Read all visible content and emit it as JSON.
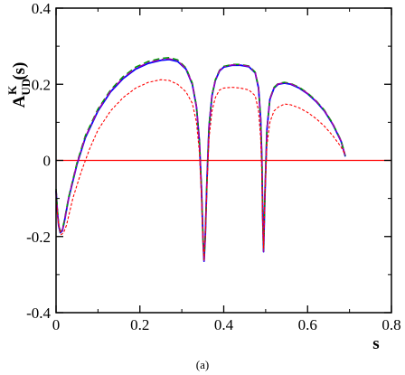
{
  "chart_data": {
    "type": "line",
    "xlabel": "s",
    "ylabel": {
      "main": "A",
      "superscript": "K",
      "subscript": "UD",
      "suffix": "(s)"
    },
    "caption": "(a)",
    "xlim": [
      0,
      0.8
    ],
    "ylim": [
      -0.4,
      0.4
    ],
    "x_ticks": [
      0,
      0.2,
      0.4,
      0.6,
      0.8
    ],
    "x_tick_labels": [
      "0",
      "0.2",
      "0.4",
      "0.6",
      "0.8"
    ],
    "y_ticks": [
      -0.4,
      -0.2,
      0,
      0.2,
      0.4
    ],
    "y_tick_labels": [
      "-0.4",
      "-0.2",
      "0",
      "0.2",
      "0.4"
    ],
    "grid": false,
    "legend": "none",
    "reference_line": {
      "y": 0,
      "color": "#ff0000"
    },
    "series": [
      {
        "color": "#0000ff",
        "style": "solid",
        "x": [
          0.0,
          0.003,
          0.006,
          0.01,
          0.015,
          0.02,
          0.03,
          0.05,
          0.07,
          0.1,
          0.13,
          0.16,
          0.19,
          0.22,
          0.25,
          0.27,
          0.29,
          0.31,
          0.325,
          0.335,
          0.342,
          0.347,
          0.351,
          0.353,
          0.356,
          0.36,
          0.365,
          0.372,
          0.38,
          0.39,
          0.4,
          0.42,
          0.44,
          0.46,
          0.475,
          0.483,
          0.488,
          0.491,
          0.493,
          0.495,
          0.498,
          0.503,
          0.51,
          0.52,
          0.53,
          0.545,
          0.56,
          0.58,
          0.6,
          0.62,
          0.64,
          0.66,
          0.68,
          0.69
        ],
        "y": [
          -0.08,
          -0.13,
          -0.17,
          -0.19,
          -0.185,
          -0.16,
          -0.1,
          -0.01,
          0.06,
          0.13,
          0.18,
          0.215,
          0.24,
          0.255,
          0.263,
          0.265,
          0.26,
          0.24,
          0.2,
          0.14,
          0.05,
          -0.08,
          -0.22,
          -0.265,
          -0.2,
          -0.05,
          0.09,
          0.17,
          0.21,
          0.235,
          0.245,
          0.25,
          0.25,
          0.246,
          0.23,
          0.19,
          0.11,
          0.0,
          -0.15,
          -0.24,
          -0.1,
          0.08,
          0.16,
          0.19,
          0.2,
          0.203,
          0.2,
          0.19,
          0.175,
          0.155,
          0.13,
          0.095,
          0.05,
          0.01
        ]
      },
      {
        "color": "#00a000",
        "style": "dashed",
        "x": [
          0.0,
          0.003,
          0.006,
          0.01,
          0.015,
          0.02,
          0.03,
          0.05,
          0.07,
          0.1,
          0.13,
          0.16,
          0.19,
          0.22,
          0.25,
          0.27,
          0.29,
          0.31,
          0.325,
          0.335,
          0.342,
          0.347,
          0.351,
          0.353,
          0.356,
          0.36,
          0.365,
          0.372,
          0.38,
          0.39,
          0.4,
          0.42,
          0.44,
          0.46,
          0.475,
          0.483,
          0.488,
          0.491,
          0.493,
          0.495,
          0.498,
          0.503,
          0.51,
          0.52,
          0.53,
          0.545,
          0.56,
          0.58,
          0.6,
          0.62,
          0.64,
          0.66,
          0.68,
          0.69
        ],
        "y": [
          -0.075,
          -0.125,
          -0.165,
          -0.188,
          -0.182,
          -0.157,
          -0.097,
          -0.006,
          0.065,
          0.135,
          0.185,
          0.22,
          0.245,
          0.26,
          0.268,
          0.27,
          0.264,
          0.243,
          0.203,
          0.142,
          0.052,
          -0.078,
          -0.218,
          -0.262,
          -0.198,
          -0.048,
          0.092,
          0.172,
          0.212,
          0.237,
          0.247,
          0.252,
          0.252,
          0.248,
          0.232,
          0.192,
          0.112,
          0.002,
          -0.148,
          -0.238,
          -0.098,
          0.082,
          0.162,
          0.192,
          0.202,
          0.205,
          0.202,
          0.192,
          0.177,
          0.157,
          0.132,
          0.097,
          0.052,
          0.012
        ]
      },
      {
        "color": "#aa00aa",
        "style": "dashdot",
        "x": [
          0.0,
          0.003,
          0.006,
          0.01,
          0.015,
          0.02,
          0.03,
          0.05,
          0.07,
          0.1,
          0.13,
          0.16,
          0.19,
          0.22,
          0.25,
          0.27,
          0.29,
          0.31,
          0.325,
          0.335,
          0.342,
          0.347,
          0.351,
          0.353,
          0.356,
          0.36,
          0.365,
          0.372,
          0.38,
          0.39,
          0.4,
          0.42,
          0.44,
          0.46,
          0.475,
          0.483,
          0.488,
          0.491,
          0.493,
          0.495,
          0.498,
          0.503,
          0.51,
          0.52,
          0.53,
          0.545,
          0.56,
          0.58,
          0.6,
          0.62,
          0.64,
          0.66,
          0.68,
          0.69
        ],
        "y": [
          -0.078,
          -0.128,
          -0.168,
          -0.189,
          -0.184,
          -0.159,
          -0.099,
          -0.008,
          0.062,
          0.132,
          0.182,
          0.217,
          0.242,
          0.257,
          0.265,
          0.267,
          0.262,
          0.241,
          0.201,
          0.141,
          0.051,
          -0.079,
          -0.219,
          -0.263,
          -0.199,
          -0.049,
          0.091,
          0.171,
          0.211,
          0.236,
          0.246,
          0.251,
          0.251,
          0.247,
          0.231,
          0.191,
          0.111,
          0.001,
          -0.149,
          -0.239,
          -0.099,
          0.081,
          0.161,
          0.191,
          0.201,
          0.204,
          0.201,
          0.191,
          0.176,
          0.156,
          0.131,
          0.096,
          0.051,
          0.011
        ]
      },
      {
        "color": "#ff0000",
        "style": "dotted",
        "x": [
          0.0,
          0.004,
          0.008,
          0.012,
          0.018,
          0.025,
          0.04,
          0.06,
          0.08,
          0.1,
          0.13,
          0.16,
          0.19,
          0.22,
          0.25,
          0.27,
          0.29,
          0.31,
          0.325,
          0.335,
          0.342,
          0.347,
          0.351,
          0.353,
          0.356,
          0.36,
          0.365,
          0.372,
          0.38,
          0.39,
          0.4,
          0.42,
          0.44,
          0.46,
          0.475,
          0.483,
          0.488,
          0.491,
          0.493,
          0.495,
          0.498,
          0.503,
          0.51,
          0.52,
          0.53,
          0.545,
          0.56,
          0.58,
          0.6,
          0.62,
          0.64,
          0.66,
          0.68,
          0.69
        ],
        "y": [
          -0.1,
          -0.15,
          -0.18,
          -0.195,
          -0.19,
          -0.17,
          -0.1,
          -0.03,
          0.03,
          0.08,
          0.13,
          0.165,
          0.19,
          0.205,
          0.212,
          0.21,
          0.2,
          0.18,
          0.15,
          0.1,
          0.02,
          -0.1,
          -0.23,
          -0.26,
          -0.2,
          -0.07,
          0.06,
          0.13,
          0.165,
          0.185,
          0.19,
          0.192,
          0.19,
          0.185,
          0.17,
          0.13,
          0.06,
          -0.04,
          -0.17,
          -0.23,
          -0.1,
          0.04,
          0.1,
          0.13,
          0.14,
          0.148,
          0.146,
          0.138,
          0.126,
          0.11,
          0.09,
          0.065,
          0.035,
          0.015
        ]
      }
    ]
  }
}
